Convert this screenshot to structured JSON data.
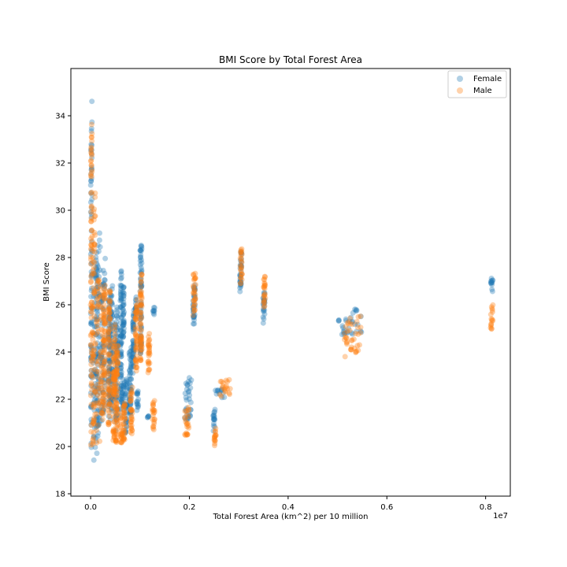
{
  "chart_data": {
    "type": "scatter",
    "title": "BMI Score by Total Forest Area",
    "xlabel": "Total Forest Area (km^2) per 10 million",
    "ylabel": "BMI Score",
    "x_offset_label": "1e7",
    "x_scale_factor": 10000000,
    "xlim": [
      -0.04,
      0.85
    ],
    "ylim": [
      17.9,
      36.0
    ],
    "x_ticks": [
      0.0,
      0.2,
      0.4,
      0.6,
      0.8
    ],
    "x_tick_labels": [
      "0.0",
      "0.2",
      "0.4",
      "0.6",
      "0.8"
    ],
    "y_ticks": [
      18,
      20,
      22,
      24,
      26,
      28,
      30,
      32,
      34
    ],
    "y_tick_labels": [
      "18",
      "20",
      "22",
      "24",
      "26",
      "28",
      "30",
      "32",
      "34"
    ],
    "grid": false,
    "legend_position": "top-right",
    "marker_alpha": 0.35,
    "series": [
      {
        "name": "Female",
        "color": "#1f77b4",
        "clusters": [
          {
            "x": [
              0.0,
              0.003
            ],
            "y": [
              18.8,
              35.0
            ]
          },
          {
            "x": [
              0.005,
              0.015
            ],
            "y": [
              19.2,
              28.5
            ]
          },
          {
            "x": [
              0.01,
              0.02
            ],
            "y": [
              19.3,
              29.5
            ]
          },
          {
            "x": [
              0.02,
              0.03
            ],
            "y": [
              20.8,
              28.0
            ]
          },
          {
            "x": [
              0.035,
              0.04
            ],
            "y": [
              21.0,
              27.0
            ]
          },
          {
            "x": [
              0.04,
              0.045
            ],
            "y": [
              20.9,
              27.5
            ]
          },
          {
            "x": [
              0.05,
              0.055
            ],
            "y": [
              20.5,
              26.2
            ]
          },
          {
            "x": [
              0.06,
              0.063
            ],
            "y": [
              21.0,
              28.1
            ]
          },
          {
            "x": [
              0.06,
              0.07
            ],
            "y": [
              21.5,
              23.0
            ]
          },
          {
            "x": [
              0.065,
              0.068
            ],
            "y": [
              24.5,
              27.0
            ]
          },
          {
            "x": [
              0.07,
              0.074
            ],
            "y": [
              20.5,
              23.0
            ]
          },
          {
            "x": [
              0.078,
              0.083
            ],
            "y": [
              21.0,
              24.5
            ]
          },
          {
            "x": [
              0.085,
              0.088
            ],
            "y": [
              23.0,
              26.0
            ]
          },
          {
            "x": [
              0.09,
              0.093
            ],
            "y": [
              25.5,
              26.5
            ]
          },
          {
            "x": [
              0.093,
              0.097
            ],
            "y": [
              21.5,
              22.5
            ]
          },
          {
            "x": [
              0.1,
              0.103
            ],
            "y": [
              23.8,
              26.2
            ]
          },
          {
            "x": [
              0.1,
              0.104
            ],
            "y": [
              26.5,
              28.7
            ]
          },
          {
            "x": [
              0.115,
              0.118
            ],
            "y": [
              21.2,
              21.3
            ]
          },
          {
            "x": [
              0.126,
              0.13
            ],
            "y": [
              25.5,
              26.0
            ]
          },
          {
            "x": [
              0.19,
              0.205
            ],
            "y": [
              21.0,
              23.0
            ]
          },
          {
            "x": [
              0.207,
              0.212
            ],
            "y": [
              24.8,
              27.0
            ]
          },
          {
            "x": [
              0.248,
              0.252
            ],
            "y": [
              20.6,
              21.7
            ]
          },
          {
            "x": [
              0.252,
              0.272
            ],
            "y": [
              22.0,
              22.5
            ]
          },
          {
            "x": [
              0.302,
              0.306
            ],
            "y": [
              26.3,
              28.4
            ]
          },
          {
            "x": [
              0.349,
              0.353
            ],
            "y": [
              25.1,
              26.7
            ]
          },
          {
            "x": [
              0.5,
              0.55
            ],
            "y": [
              24.6,
              26.0
            ]
          },
          {
            "x": [
              0.81,
              0.815
            ],
            "y": [
              26.4,
              27.2
            ]
          }
        ]
      },
      {
        "name": "Male",
        "color": "#ff7f0e",
        "clusters": [
          {
            "x": [
              0.0,
              0.003
            ],
            "y": [
              19.8,
              34.2
            ]
          },
          {
            "x": [
              0.003,
              0.01
            ],
            "y": [
              19.5,
              31.0
            ]
          },
          {
            "x": [
              0.01,
              0.025
            ],
            "y": [
              19.5,
              28.0
            ]
          },
          {
            "x": [
              0.025,
              0.03
            ],
            "y": [
              20.8,
              27.2
            ]
          },
          {
            "x": [
              0.035,
              0.04
            ],
            "y": [
              20.5,
              26.8
            ]
          },
          {
            "x": [
              0.045,
              0.05
            ],
            "y": [
              20.0,
              25.2
            ]
          },
          {
            "x": [
              0.05,
              0.056
            ],
            "y": [
              19.9,
              24.5
            ]
          },
          {
            "x": [
              0.06,
              0.065
            ],
            "y": [
              20.0,
              21.5
            ]
          },
          {
            "x": [
              0.066,
              0.07
            ],
            "y": [
              20.0,
              22.0
            ]
          },
          {
            "x": [
              0.08,
              0.085
            ],
            "y": [
              20.3,
              22.6
            ]
          },
          {
            "x": [
              0.09,
              0.095
            ],
            "y": [
              22.8,
              26.3
            ]
          },
          {
            "x": [
              0.1,
              0.104
            ],
            "y": [
              23.3,
              27.4
            ]
          },
          {
            "x": [
              0.116,
              0.12
            ],
            "y": [
              23.0,
              24.9
            ]
          },
          {
            "x": [
              0.125,
              0.13
            ],
            "y": [
              20.5,
              22.0
            ]
          },
          {
            "x": [
              0.19,
              0.2
            ],
            "y": [
              20.3,
              21.8
            ]
          },
          {
            "x": [
              0.207,
              0.213
            ],
            "y": [
              25.5,
              27.6
            ]
          },
          {
            "x": [
              0.25,
              0.254
            ],
            "y": [
              19.8,
              20.8
            ]
          },
          {
            "x": [
              0.26,
              0.285
            ],
            "y": [
              22.0,
              22.9
            ]
          },
          {
            "x": [
              0.303,
              0.307
            ],
            "y": [
              26.8,
              28.5
            ]
          },
          {
            "x": [
              0.35,
              0.354
            ],
            "y": [
              25.8,
              27.4
            ]
          },
          {
            "x": [
              0.51,
              0.55
            ],
            "y": [
              23.6,
              25.7
            ]
          },
          {
            "x": [
              0.81,
              0.815
            ],
            "y": [
              24.9,
              26.0
            ]
          }
        ]
      }
    ]
  }
}
